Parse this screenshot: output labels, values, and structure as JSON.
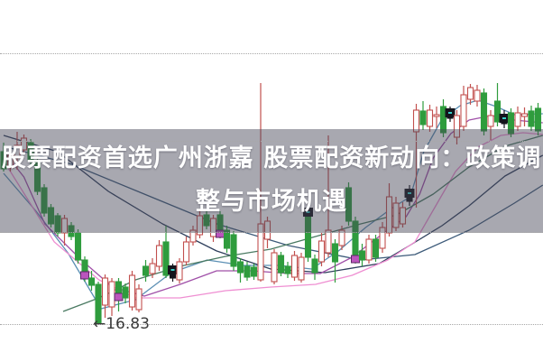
{
  "banner": {
    "line1": "股票配资首选广州浙嘉 股票配资新动向：政策调",
    "line2": "整与市场机遇",
    "bg_color": "rgba(70,70,88,0.47)",
    "text_color": "#ffffff"
  },
  "chart_data": {
    "type": "candlestick",
    "title": "",
    "xlabel": "",
    "ylabel": "",
    "ylim": [
      16.4,
      20.41
    ],
    "xlim_index": [
      -0.533,
      79.733
    ],
    "grid": "horizontal-dotted",
    "gridline_prices": [
      19.82,
      18.85,
      17.84,
      16.82
    ],
    "colors": {
      "up": "#c2504e",
      "down": "#2f9c3d",
      "dark": "#14141c",
      "marker_magenta": "#bb55bd",
      "marker_magenta_border": "#5c2a66",
      "marker_teal": "#3ad0c8",
      "grid": "#a8a8a8",
      "background": "#ffffff"
    },
    "candle_fields": [
      "type(u=red-hollow,d=green-filled,k=dark)",
      "high",
      "body_top",
      "body_bottom",
      "low",
      "marker"
    ],
    "candles": [
      [
        "d",
        18.83,
        18.73,
        18.54,
        18.51,
        ""
      ],
      [
        "u",
        18.73,
        18.69,
        18.55,
        18.51,
        ""
      ],
      [
        "u",
        18.95,
        18.8,
        18.66,
        18.53,
        ""
      ],
      [
        "u",
        18.92,
        18.88,
        18.75,
        18.7,
        ""
      ],
      [
        "d",
        18.87,
        18.83,
        18.63,
        18.59,
        ""
      ],
      [
        "d",
        18.65,
        18.61,
        18.29,
        18.25,
        ""
      ],
      [
        "d",
        18.37,
        18.33,
        18.05,
        18.01,
        ""
      ],
      [
        "d",
        18.15,
        18.11,
        17.93,
        17.89,
        ""
      ],
      [
        "d",
        18.05,
        18.02,
        17.83,
        17.79,
        ""
      ],
      [
        "u",
        18.03,
        17.99,
        17.83,
        17.69,
        ""
      ],
      [
        "d",
        17.95,
        17.91,
        17.79,
        17.75,
        ""
      ],
      [
        "d",
        17.87,
        17.83,
        17.53,
        17.49,
        ""
      ],
      [
        "d",
        17.57,
        17.53,
        17.35,
        17.29,
        "magenta"
      ],
      [
        "d",
        17.41,
        17.33,
        17.25,
        17.19,
        ""
      ],
      [
        "d",
        17.29,
        17.26,
        16.83,
        16.83,
        ""
      ],
      [
        "u",
        17.37,
        17.33,
        17.03,
        16.89,
        ""
      ],
      [
        "u",
        17.33,
        17.29,
        17.01,
        16.91,
        ""
      ],
      [
        "d",
        17.33,
        17.29,
        17.11,
        16.96,
        "magenta"
      ],
      [
        "d",
        17.27,
        17.23,
        17.11,
        17.05,
        ""
      ],
      [
        "u",
        17.41,
        17.36,
        17.01,
        16.97,
        ""
      ],
      [
        "u",
        17.26,
        17.21,
        16.98,
        16.95,
        ""
      ],
      [
        "d",
        17.53,
        17.46,
        17.36,
        17.29,
        ""
      ],
      [
        "u",
        17.55,
        17.49,
        17.38,
        17.33,
        ""
      ],
      [
        "u",
        17.75,
        17.69,
        17.46,
        17.41,
        ""
      ],
      [
        "d",
        17.91,
        17.73,
        17.36,
        17.33,
        ""
      ],
      [
        "k",
        17.49,
        17.45,
        17.33,
        17.29,
        "black"
      ],
      [
        "u",
        17.55,
        17.51,
        17.31,
        17.27,
        ""
      ],
      [
        "u",
        17.79,
        17.73,
        17.51,
        17.47,
        ""
      ],
      [
        "u",
        17.91,
        17.86,
        17.73,
        17.69,
        ""
      ],
      [
        "u",
        18.07,
        18.02,
        17.81,
        17.77,
        ""
      ],
      [
        "d",
        18.07,
        18.03,
        17.91,
        17.87,
        ""
      ],
      [
        "u",
        18.03,
        17.99,
        17.79,
        17.73,
        ""
      ],
      [
        "d",
        18.07,
        18.03,
        17.81,
        17.77,
        "magenta"
      ],
      [
        "d",
        17.91,
        17.86,
        17.66,
        17.61,
        ""
      ],
      [
        "d",
        17.85,
        17.81,
        17.46,
        17.41,
        ""
      ],
      [
        "d",
        17.55,
        17.51,
        17.39,
        17.28,
        ""
      ],
      [
        "d",
        17.51,
        17.46,
        17.34,
        17.3,
        ""
      ],
      [
        "d",
        17.49,
        17.45,
        17.35,
        17.31,
        ""
      ],
      [
        "u",
        19.49,
        17.93,
        17.31,
        17.29,
        ""
      ],
      [
        "u",
        18.01,
        17.96,
        17.76,
        17.66,
        ""
      ],
      [
        "u",
        17.65,
        17.61,
        17.29,
        17.26,
        ""
      ],
      [
        "d",
        17.62,
        17.58,
        17.39,
        17.35,
        ""
      ],
      [
        "d",
        17.51,
        17.46,
        17.38,
        17.33,
        ""
      ],
      [
        "u",
        17.63,
        17.58,
        17.34,
        17.3,
        ""
      ],
      [
        "u",
        17.61,
        17.56,
        17.31,
        17.28,
        ""
      ],
      [
        "d",
        18.13,
        18.09,
        17.56,
        17.51,
        "black"
      ],
      [
        "d",
        17.59,
        17.54,
        17.39,
        17.31,
        ""
      ],
      [
        "u",
        17.83,
        17.74,
        17.51,
        17.46,
        ""
      ],
      [
        "u",
        18.91,
        17.86,
        17.61,
        17.56,
        ""
      ],
      [
        "d",
        17.76,
        17.71,
        17.51,
        17.28,
        ""
      ],
      [
        "u",
        17.91,
        17.86,
        17.69,
        17.64,
        ""
      ],
      [
        "d",
        18.39,
        18.33,
        17.96,
        17.91,
        ""
      ],
      [
        "d",
        18.01,
        17.96,
        17.53,
        17.49,
        "magenta"
      ],
      [
        "d",
        17.71,
        17.63,
        17.53,
        17.46,
        ""
      ],
      [
        "u",
        17.81,
        17.76,
        17.53,
        17.49,
        ""
      ],
      [
        "d",
        17.81,
        17.76,
        17.56,
        17.51,
        ""
      ],
      [
        "u",
        17.95,
        17.89,
        17.66,
        17.61,
        ""
      ],
      [
        "u",
        18.38,
        18.23,
        17.83,
        17.79,
        ""
      ],
      [
        "u",
        18.23,
        18.16,
        17.89,
        17.85,
        ""
      ],
      [
        "u",
        18.17,
        18.11,
        17.93,
        17.89,
        ""
      ],
      [
        "k",
        18.36,
        18.3,
        18.18,
        18.13,
        "black"
      ],
      [
        "u",
        19.26,
        19.19,
        18.95,
        18.11,
        ""
      ],
      [
        "d",
        19.29,
        19.18,
        19.03,
        18.97,
        ""
      ],
      [
        "u",
        19.25,
        19.19,
        19.01,
        18.95,
        ""
      ],
      [
        "u",
        19.23,
        19.14,
        19.12,
        18.99,
        ""
      ],
      [
        "d",
        19.31,
        19.23,
        18.94,
        18.89,
        ""
      ],
      [
        "k",
        19.23,
        19.19,
        19.1,
        19.06,
        "black"
      ],
      [
        "u",
        19.19,
        19.13,
        18.89,
        18.81,
        ""
      ],
      [
        "u",
        19.46,
        19.36,
        19.01,
        18.96,
        ""
      ],
      [
        "u",
        19.48,
        19.44,
        19.31,
        19.25,
        ""
      ],
      [
        "u",
        19.47,
        19.41,
        19.29,
        19.23,
        ""
      ],
      [
        "d",
        19.43,
        19.38,
        18.96,
        18.91,
        ""
      ],
      [
        "u",
        19.19,
        19.13,
        19.01,
        18.86,
        ""
      ],
      [
        "d",
        19.49,
        19.29,
        19.06,
        19.01,
        ""
      ],
      [
        "k",
        19.19,
        19.13,
        19.04,
        18.99,
        "black"
      ],
      [
        "d",
        19.21,
        19.16,
        18.93,
        18.89,
        ""
      ],
      [
        "u",
        19.23,
        19.16,
        19.01,
        18.96,
        ""
      ],
      [
        "u",
        19.22,
        19.15,
        19.12,
        19.01,
        ""
      ],
      [
        "d",
        19.24,
        19.18,
        19.01,
        18.96,
        ""
      ],
      [
        "d",
        19.27,
        19.21,
        18.96,
        18.91,
        ""
      ]
    ],
    "series": [
      {
        "name": "ma-dark-slow",
        "color": "#2e3f5c",
        "points": [
          [
            0,
            18.91
          ],
          [
            8,
            18.73
          ],
          [
            15.5,
            18.29
          ],
          [
            23.5,
            17.93
          ],
          [
            31.5,
            17.63
          ],
          [
            39.5,
            17.43
          ],
          [
            47.5,
            17.39
          ],
          [
            55.5,
            17.49
          ],
          [
            60,
            17.69
          ],
          [
            64.8,
            17.91
          ],
          [
            68.8,
            18.13
          ],
          [
            74.1,
            18.46
          ],
          [
            79.7,
            18.69
          ]
        ]
      },
      {
        "name": "ma-slate",
        "color": "#3d5b7a",
        "points": [
          [
            0,
            18.79
          ],
          [
            10.1,
            18.59
          ],
          [
            20.8,
            18.26
          ],
          [
            31.5,
            17.93
          ],
          [
            42.1,
            17.69
          ],
          [
            52.8,
            17.53
          ],
          [
            60.8,
            17.59
          ],
          [
            68.8,
            17.86
          ],
          [
            75.5,
            18.16
          ],
          [
            79.7,
            18.36
          ]
        ]
      },
      {
        "name": "ma-steel-fast",
        "color": "#5b8fb4",
        "points": [
          [
            0,
            18.49
          ],
          [
            4.8,
            18.07
          ],
          [
            9.5,
            17.61
          ],
          [
            14.4,
            16.99
          ],
          [
            19.5,
            17.09
          ],
          [
            24.8,
            17.39
          ],
          [
            30.1,
            17.53
          ],
          [
            35.5,
            17.47
          ],
          [
            40.8,
            17.47
          ],
          [
            45.5,
            17.43
          ],
          [
            49.5,
            17.63
          ],
          [
            53.5,
            17.89
          ],
          [
            57.5,
            18.11
          ],
          [
            60.1,
            18.23
          ],
          [
            62.1,
            18.73
          ],
          [
            64.8,
            19.09
          ],
          [
            67.5,
            19.24
          ],
          [
            70.1,
            19.3
          ],
          [
            72.8,
            19.23
          ],
          [
            75.5,
            19.14
          ],
          [
            79.7,
            19.15
          ]
        ]
      },
      {
        "name": "ma-magenta",
        "color": "#a050a8",
        "points": [
          [
            0,
            18.73
          ],
          [
            3,
            18.45
          ],
          [
            6.1,
            17.93
          ],
          [
            11.5,
            17.53
          ],
          [
            16.1,
            17.23
          ],
          [
            20.8,
            17.13
          ],
          [
            26.1,
            17.26
          ],
          [
            31.5,
            17.41
          ],
          [
            36.8,
            17.41
          ],
          [
            42.1,
            17.38
          ],
          [
            46.8,
            17.38
          ],
          [
            51.5,
            17.56
          ],
          [
            55.5,
            17.79
          ],
          [
            59.5,
            18.01
          ],
          [
            61.5,
            18.26
          ],
          [
            63.5,
            18.66
          ],
          [
            66.1,
            18.93
          ],
          [
            68.8,
            19.08
          ],
          [
            72.1,
            19.13
          ],
          [
            75.5,
            19.08
          ],
          [
            79.7,
            19.05
          ]
        ]
      },
      {
        "name": "ma-pink",
        "color": "#ef8fd2",
        "points": [
          [
            0,
            18.63
          ],
          [
            7.5,
            17.73
          ],
          [
            14.1,
            17.31
          ],
          [
            19.5,
            17.11
          ],
          [
            26.1,
            17.11
          ],
          [
            32.8,
            17.19
          ],
          [
            39.5,
            17.23
          ],
          [
            46.1,
            17.26
          ],
          [
            51.5,
            17.36
          ],
          [
            56.8,
            17.53
          ],
          [
            60.8,
            17.73
          ],
          [
            64.1,
            18.16
          ],
          [
            66.8,
            18.51
          ],
          [
            70.1,
            18.78
          ],
          [
            73.5,
            18.91
          ],
          [
            76.8,
            18.94
          ],
          [
            79.7,
            18.92
          ]
        ]
      },
      {
        "name": "ma-olive",
        "color": "#4a7a62",
        "points": [
          [
            8.8,
            16.96
          ],
          [
            14.1,
            17.11
          ],
          [
            19.5,
            17.31
          ],
          [
            26.1,
            17.46
          ],
          [
            32.8,
            17.57
          ],
          [
            39.5,
            17.65
          ],
          [
            46.1,
            17.79
          ],
          [
            52.8,
            17.93
          ],
          [
            58.1,
            18.03
          ],
          [
            63.5,
            18.26
          ],
          [
            68.8,
            18.56
          ],
          [
            74.1,
            18.79
          ],
          [
            79.7,
            18.91
          ]
        ]
      }
    ],
    "annotation": {
      "text": "←16.83",
      "price": 16.83,
      "candle_index": 14,
      "color": "#3a3a3a"
    },
    "legend": "none",
    "axes_labels_visible": false
  }
}
